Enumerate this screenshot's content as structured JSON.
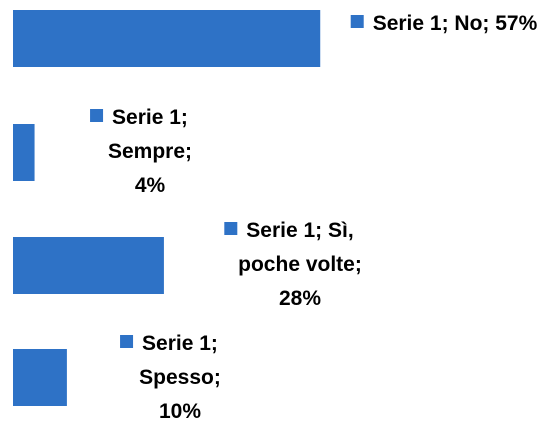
{
  "chart_data": {
    "type": "hbar",
    "series": [
      {
        "name": "Serie 1",
        "color": "#2e72c6",
        "values": [
          57,
          4,
          28,
          10
        ],
        "value_labels": [
          "Serie 1; No; 57%",
          "Serie 1; Sempre; 4%",
          "Serie 1; Sì, poche volte; 28%",
          "Serie 1; Spesso; 10%"
        ]
      }
    ],
    "categories": [
      "No",
      "Sempre",
      "Sì, poche volte",
      "Spesso"
    ],
    "xlim": [
      0,
      100
    ]
  }
}
